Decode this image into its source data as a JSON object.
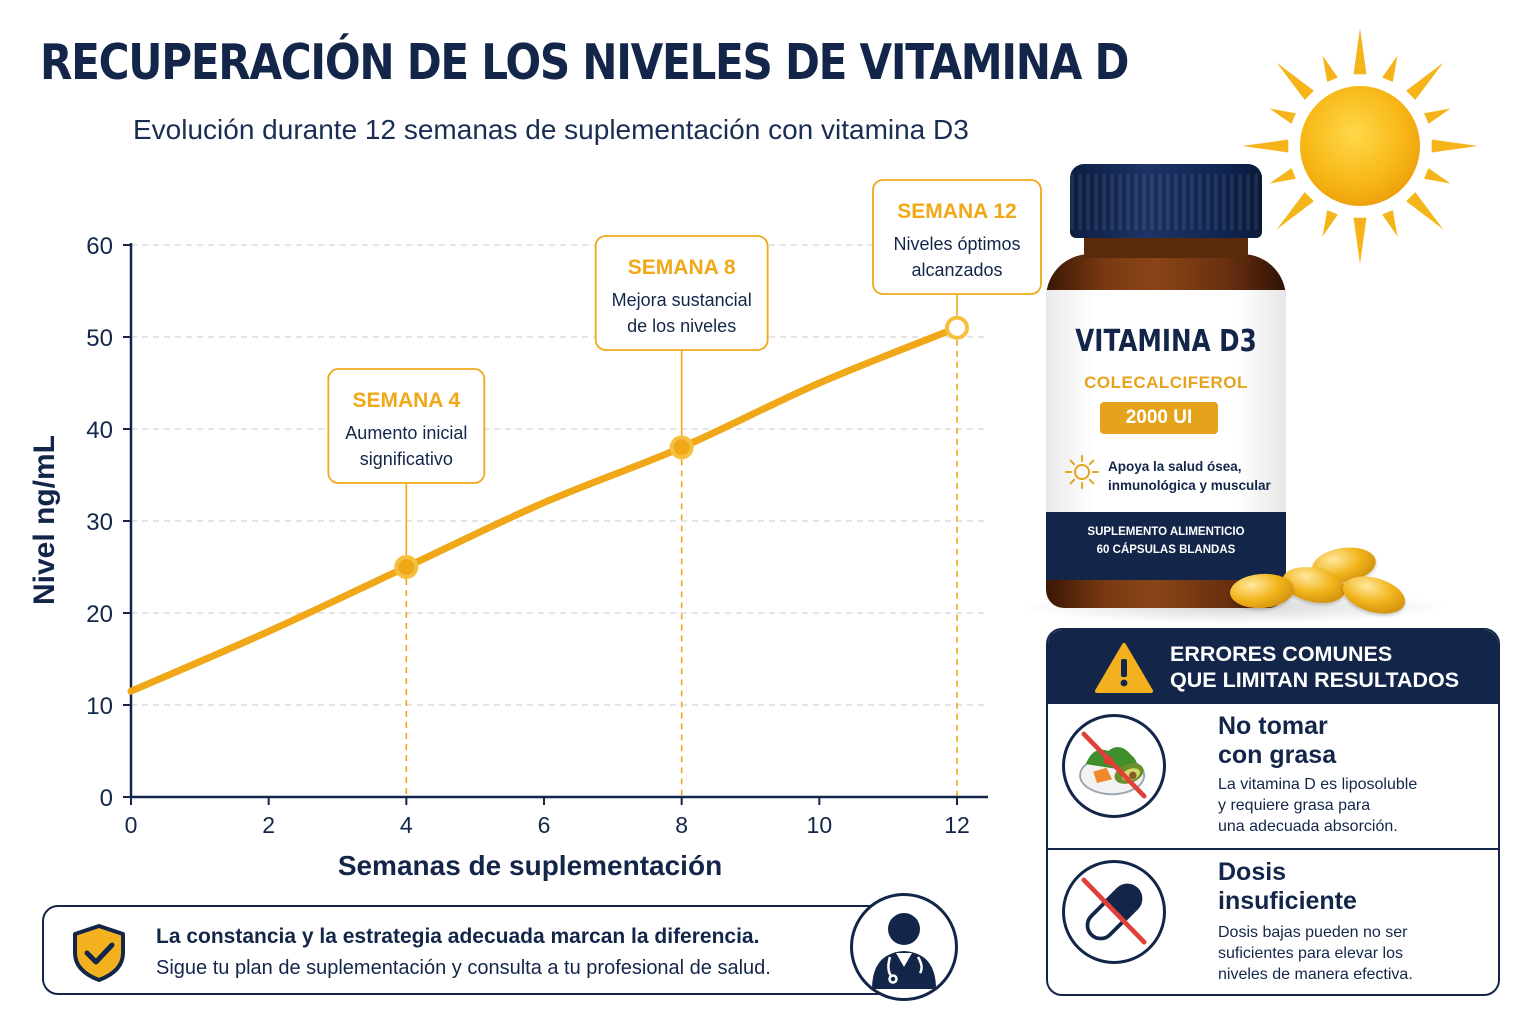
{
  "header": {
    "title": "RECUPERACIÓN DE LOS NIVELES DE VITAMINA D",
    "subtitle": "Evolución durante 12 semanas de suplementación con vitamina D3"
  },
  "colors": {
    "navy": "#13264a",
    "gold": "#f0a818",
    "grid": "#d5d5d5"
  },
  "chart_data": {
    "type": "line",
    "title": "RECUPERACIÓN DE LOS NIVELES DE VITAMINA D",
    "subtitle": "Evolución durante 12 semanas de suplementación con vitamina D3",
    "xlabel": "Semanas de suplementación",
    "ylabel": "Nivel ng/mL",
    "xlim": [
      0,
      13
    ],
    "ylim": [
      0,
      60
    ],
    "xticks": [
      0,
      2,
      4,
      6,
      8,
      10,
      12
    ],
    "yticks": [
      0,
      10,
      20,
      30,
      40,
      50,
      60
    ],
    "grid": "horizontal dashed",
    "series": [
      {
        "x": [
          0,
          2,
          4,
          6,
          8,
          10,
          12
        ],
        "values": [
          11.5,
          18,
          25,
          32,
          38,
          45,
          51
        ]
      }
    ],
    "annotations": [
      {
        "x": 4,
        "y": 25,
        "title": "SEMANA 4",
        "lines": [
          "Aumento inicial",
          "significativo"
        ]
      },
      {
        "x": 8,
        "y": 38,
        "title": "SEMANA 8",
        "lines": [
          "Mejora sustancial",
          "de los niveles"
        ]
      },
      {
        "x": 12,
        "y": 51,
        "title": "SEMANA 12",
        "lines": [
          "Niveles óptimos",
          "alcanzados"
        ]
      }
    ]
  },
  "product": {
    "name": "VITAMINA D3",
    "compound": "COLECALCIFEROL",
    "dose": "2000 UI",
    "claim_line1": "Apoya la salud ósea,",
    "claim_line2": "inmunológica y muscular",
    "band_line1": "SUPLEMENTO ALIMENTICIO",
    "band_line2": "60 CÁPSULAS BLANDAS"
  },
  "errors": {
    "title_line1": "ERRORES COMUNES",
    "title_line2": "QUE LIMITAN RESULTADOS",
    "items": [
      {
        "icon": "no-fat-food-icon",
        "name_line1": "No tomar",
        "name_line2": "con grasa",
        "desc_line1": "La vitamina D es liposoluble",
        "desc_line2": "y requiere grasa para",
        "desc_line3": "una adecuada absorción."
      },
      {
        "icon": "no-capsule-icon",
        "name_line1": "Dosis",
        "name_line2": "insuficiente",
        "desc_line1": "Dosis bajas pueden no ser",
        "desc_line2": "suficientes para elevar los",
        "desc_line3": "niveles de manera efectiva."
      }
    ]
  },
  "banner": {
    "icon": "shield-check-icon",
    "line1": "La constancia y la estrategia adecuada marcan la diferencia.",
    "line2": "Sigue tu plan de suplementación y consulta a tu profesional de salud.",
    "avatar_icon": "doctor-icon"
  }
}
